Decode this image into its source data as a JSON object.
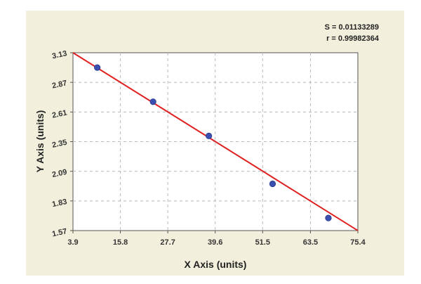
{
  "chart_data": {
    "type": "scatter",
    "title": "",
    "xlabel": "X Axis (units)",
    "ylabel": "Y Axis (units)",
    "xlim": [
      3.9,
      75.4
    ],
    "ylim": [
      1.57,
      3.13
    ],
    "x_ticks": [
      "3.9",
      "15.8",
      "27.7",
      "39.6",
      "51.5",
      "63.5",
      "75.4"
    ],
    "y_ticks": [
      "3.13",
      "2.87",
      "2.61",
      "2.35",
      "2.09",
      "1.83",
      "1.57"
    ],
    "x_tick_values": [
      3.9,
      15.8,
      27.7,
      39.6,
      51.5,
      63.5,
      75.4
    ],
    "y_tick_values": [
      3.13,
      2.87,
      2.61,
      2.35,
      2.09,
      1.83,
      1.57
    ],
    "grid": true,
    "series": [
      {
        "points": [
          {
            "x": 10,
            "y": 3.0
          },
          {
            "x": 24,
            "y": 2.7
          },
          {
            "x": 38,
            "y": 2.4
          },
          {
            "x": 54,
            "y": 1.98
          },
          {
            "x": 68,
            "y": 1.68
          }
        ],
        "color": "#3a4fb0"
      }
    ],
    "fit_line": {
      "x": [
        3.9,
        75.4
      ],
      "y": [
        3.13,
        1.57
      ],
      "color": "#e02020"
    },
    "stats": {
      "s": "S = 0.01133289",
      "r": "r = 0.99982364"
    }
  },
  "colors": {
    "panel_background": "#f2f0dc",
    "plot_background": "#ffffff",
    "grid": "#b8b8b8",
    "axis": "#555555"
  }
}
